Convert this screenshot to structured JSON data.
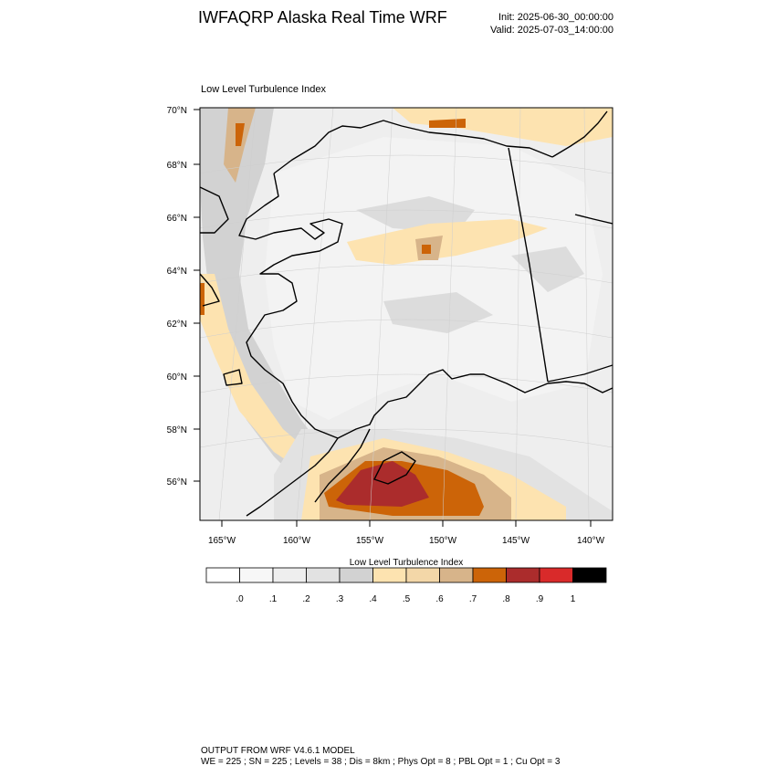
{
  "header": {
    "title": "IWFAQRP Alaska Real Time WRF",
    "init": "Init: 2025-06-30_00:00:00",
    "valid": "Valid: 2025-07-03_14:00:00"
  },
  "plot": {
    "field_label": "Low Level Turbulence Index",
    "lat_ticks": [
      "70°N",
      "68°N",
      "66°N",
      "64°N",
      "62°N",
      "60°N",
      "58°N",
      "56°N"
    ],
    "lon_ticks": [
      "165°W",
      "160°W",
      "155°W",
      "150°W",
      "145°W",
      "140°W"
    ]
  },
  "colorbar": {
    "title": "Low Level Turbulence Index",
    "labels": [
      ".0",
      ".1",
      ".2",
      ".3",
      ".4",
      ".5",
      ".6",
      ".7",
      ".8",
      ".9",
      "1"
    ],
    "colors": [
      "#ffffff",
      "#f7f7f7",
      "#eeeeee",
      "#e2e2e2",
      "#d2d2d2",
      "#fde3b0",
      "#f3d7a8",
      "#d7b48a",
      "#cc6408",
      "#ab2c2c",
      "#d92a2a",
      "#000000"
    ]
  },
  "footer": {
    "line1": "OUTPUT FROM WRF V4.6.1 MODEL",
    "line2": "WE = 225 ; SN = 225 ; Levels = 38 ; Dis = 8km ; Phys Opt = 8 ; PBL Opt = 1 ; Cu Opt = 3"
  }
}
